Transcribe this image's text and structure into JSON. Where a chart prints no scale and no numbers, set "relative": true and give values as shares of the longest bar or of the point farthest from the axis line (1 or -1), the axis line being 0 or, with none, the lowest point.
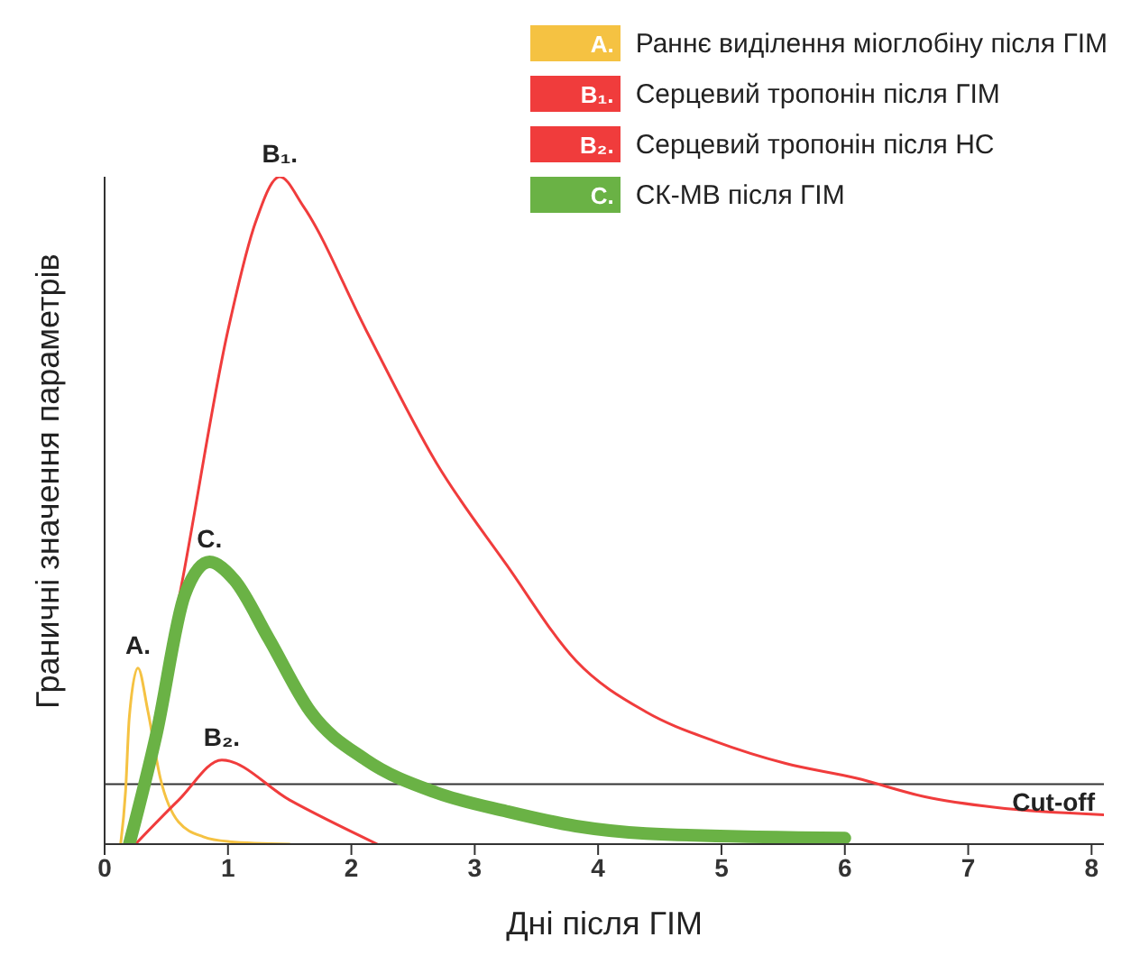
{
  "chart_data": {
    "type": "line",
    "relative": true,
    "xlabel": "Дні після ГІМ",
    "ylabel": "Граничні значення параметрів",
    "xlim": [
      0,
      8.1
    ],
    "xticks": [
      0,
      1,
      2,
      3,
      4,
      5,
      6,
      7,
      8
    ],
    "legend": "top right",
    "grid": false,
    "marker": "none",
    "line_style": "solid",
    "series": [
      {
        "name": "Раннє виділення міоглобіну після ГІМ",
        "color": "#f5c242",
        "x": [
          0.13,
          0.17,
          0.2,
          0.27,
          0.35,
          0.45,
          0.6,
          0.8,
          1.0,
          1.5
        ],
        "values": [
          0,
          0.08,
          0.19,
          0.264,
          0.2,
          0.1,
          0.033,
          0.011,
          0.004,
          0
        ]
      },
      {
        "name": "Серцевий тропонін після ГІМ",
        "color": "#f03c3c",
        "x": [
          0.2,
          0.62,
          1.0,
          1.22,
          1.42,
          1.61,
          2.12,
          2.69,
          3.26,
          3.82,
          4.39,
          4.95,
          5.52,
          6.09,
          6.65,
          7.22,
          8.1
        ],
        "values": [
          0,
          0.385,
          0.77,
          0.93,
          1.0,
          0.956,
          0.77,
          0.571,
          0.418,
          0.275,
          0.198,
          0.154,
          0.121,
          0.099,
          0.071,
          0.055,
          0.044
        ]
      },
      {
        "name": "Серцевий тропонін після НС",
        "color": "#f03c3c",
        "x": [
          0.25,
          0.6,
          0.95,
          1.5,
          2.21
        ],
        "values": [
          0,
          0.066,
          0.126,
          0.066,
          0
        ]
      },
      {
        "name": "СК-МВ після ГІМ",
        "color": "#6ab245",
        "x": [
          0.2,
          0.42,
          0.65,
          0.85,
          1.05,
          1.33,
          1.67,
          2.12,
          2.69,
          3.26,
          3.82,
          4.39,
          6.0
        ],
        "values": [
          0,
          0.165,
          0.374,
          0.423,
          0.396,
          0.308,
          0.198,
          0.126,
          0.077,
          0.049,
          0.027,
          0.016,
          0.009
        ]
      }
    ],
    "ref_lines": [
      {
        "axis": "y",
        "value": 0.09,
        "label": "Cut-off",
        "color": "#333333"
      }
    ],
    "annotations": [
      "A.",
      "B₁.",
      "B₂.",
      "C."
    ]
  }
}
